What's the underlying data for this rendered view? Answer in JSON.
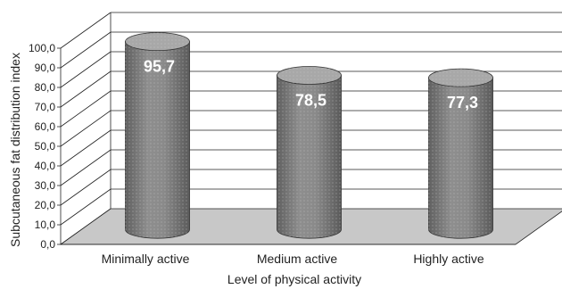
{
  "chart_data": {
    "type": "bar",
    "style": "3d-cylinder",
    "categories": [
      "Minimally active",
      "Medium active",
      "Highly active"
    ],
    "values": [
      95.7,
      78.5,
      77.3
    ],
    "data_labels": [
      "95,7",
      "78,5",
      "77,3"
    ],
    "xlabel": "Level of physical activity",
    "ylabel": "Subcutaneous fat distribution index",
    "ylim": [
      0,
      100
    ],
    "ytick_labels": [
      "0,0",
      "10,0",
      "20,0",
      "30,0",
      "40,0",
      "50,0",
      "60,0",
      "70,0",
      "80,0",
      "90,0",
      "100,0"
    ],
    "grid": true,
    "legend": "none",
    "colors": {
      "bar_fill": "#808080",
      "bar_light": "#9a9a9a",
      "bar_dark": "#5a5a5a",
      "bar_top": "#a8a8a8",
      "floor": "#c8c8c8",
      "grid": "#222222"
    }
  }
}
